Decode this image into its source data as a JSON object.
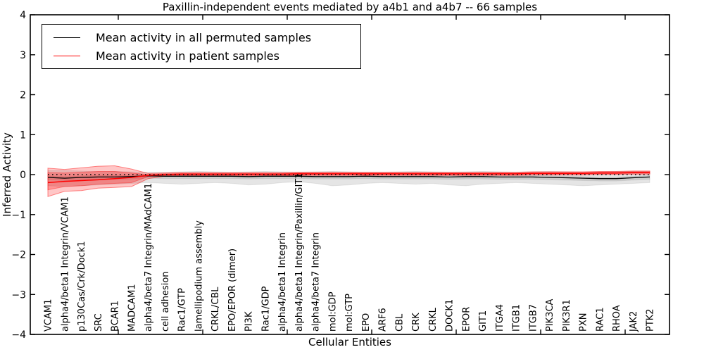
{
  "chart_data": {
    "type": "line",
    "title": "Paxillin-independent events mediated by a4b1 and a4b7 -- 66 samples",
    "xlabel": "Cellular Entities",
    "ylabel": "Inferred Activity",
    "ylim": [
      -4,
      4
    ],
    "yticks": [
      {
        "v": 4,
        "label": "4"
      },
      {
        "v": 3,
        "label": "3"
      },
      {
        "v": 2,
        "label": "2"
      },
      {
        "v": 1,
        "label": "1"
      },
      {
        "v": 0,
        "label": "0"
      },
      {
        "v": -1,
        "label": "−1"
      },
      {
        "v": -2,
        "label": "−2"
      },
      {
        "v": -3,
        "label": "−3"
      },
      {
        "v": -4,
        "label": "−4"
      }
    ],
    "xticks": [
      5,
      10,
      15,
      20,
      25,
      30,
      35
    ],
    "grid": false,
    "legend_position": "upper-left",
    "categories": [
      "VCAM1",
      "alpha4/beta1 Integrin/VCAM1",
      "p130Cas/Crk/Dock1",
      "SRC",
      "BCAR1",
      "MADCAM1",
      "alpha4/beta7 Integrin/MAdCAM1",
      "cell adhesion",
      "Rac1/GTP",
      "lamellipodium assembly",
      "CRKL/CBL",
      "EPO/EPOR (dimer)",
      "PI3K",
      "Rac1/GDP",
      "alpha4/beta1 Integrin",
      "alpha4/beta1 Integrin/Paxillin/GIT1",
      "alpha4/beta7 Integrin",
      "mol:GDP",
      "mol:GTP",
      "EPO",
      "ARF6",
      "CBL",
      "CRK",
      "CRKL",
      "DOCK1",
      "EPOR",
      "GIT1",
      "ITGA4",
      "ITGB1",
      "ITGB7",
      "PIK3CA",
      "PIK3R1",
      "PXN",
      "RAC1",
      "RHOA",
      "JAK2",
      "PTK2"
    ],
    "series": [
      {
        "name": "Mean activity in all permuted samples",
        "color": "#000000",
        "style": "solid",
        "values": [
          -0.07,
          -0.09,
          -0.07,
          -0.06,
          -0.06,
          -0.05,
          -0.03,
          -0.04,
          -0.04,
          -0.04,
          -0.04,
          -0.04,
          -0.05,
          -0.04,
          -0.04,
          -0.04,
          -0.05,
          -0.05,
          -0.05,
          -0.04,
          -0.05,
          -0.05,
          -0.05,
          -0.05,
          -0.06,
          -0.05,
          -0.05,
          -0.06,
          -0.06,
          -0.06,
          -0.07,
          -0.08,
          -0.09,
          -0.1,
          -0.1,
          -0.08,
          -0.06
        ]
      },
      {
        "name": "Mean activity in patient samples",
        "color": "#ff0000",
        "style": "solid",
        "values": [
          -0.2,
          -0.17,
          -0.15,
          -0.13,
          -0.1,
          -0.07,
          -0.02,
          0.0,
          0.01,
          0.01,
          0.01,
          0.01,
          0.01,
          0.01,
          0.01,
          0.02,
          0.02,
          0.02,
          0.02,
          0.02,
          0.02,
          0.02,
          0.02,
          0.02,
          0.02,
          0.02,
          0.02,
          0.02,
          0.02,
          0.03,
          0.03,
          0.03,
          0.03,
          0.04,
          0.04,
          0.05,
          0.05
        ]
      }
    ],
    "reference_line": {
      "name": "zero-baseline",
      "y": 0,
      "color": "#000000",
      "style": "dotted"
    },
    "bands": [
      {
        "name": "permuted-range-outer",
        "color": "#000000",
        "alpha": 0.1,
        "edge_color": "#000000",
        "edge_alpha": 0.08,
        "upper": [
          0.1,
          0.1,
          0.09,
          0.08,
          0.08,
          0.07,
          0.06,
          0.06,
          0.07,
          0.08,
          0.07,
          0.06,
          0.07,
          0.08,
          0.07,
          0.06,
          0.07,
          0.08,
          0.07,
          0.06,
          0.06,
          0.07,
          0.08,
          0.07,
          0.06,
          0.07,
          0.08,
          0.07,
          0.06,
          0.07,
          0.08,
          0.07,
          0.06,
          0.07,
          0.08,
          0.08,
          0.08
        ],
        "lower": [
          -0.28,
          -0.3,
          -0.28,
          -0.26,
          -0.24,
          -0.22,
          -0.2,
          -0.22,
          -0.24,
          -0.22,
          -0.2,
          -0.22,
          -0.26,
          -0.24,
          -0.2,
          -0.18,
          -0.22,
          -0.28,
          -0.26,
          -0.22,
          -0.2,
          -0.22,
          -0.24,
          -0.22,
          -0.26,
          -0.28,
          -0.24,
          -0.22,
          -0.2,
          -0.22,
          -0.24,
          -0.26,
          -0.28,
          -0.26,
          -0.24,
          -0.22,
          -0.2
        ]
      },
      {
        "name": "permuted-range-inner",
        "color": "#000000",
        "alpha": 0.1,
        "edge_color": "#000000",
        "edge_alpha": 0.06,
        "upper": [
          -0.03,
          -0.05,
          -0.03,
          -0.02,
          -0.02,
          -0.01,
          0.01,
          0.0,
          0.0,
          0.0,
          0.0,
          0.0,
          -0.01,
          0.0,
          0.0,
          0.0,
          -0.01,
          -0.01,
          -0.01,
          0.0,
          -0.01,
          -0.01,
          -0.01,
          -0.01,
          -0.02,
          -0.01,
          -0.01,
          -0.02,
          -0.02,
          -0.02,
          -0.03,
          -0.04,
          -0.05,
          -0.06,
          -0.06,
          -0.04,
          -0.02
        ],
        "lower": [
          -0.13,
          -0.15,
          -0.13,
          -0.12,
          -0.12,
          -0.11,
          -0.09,
          -0.1,
          -0.1,
          -0.1,
          -0.1,
          -0.1,
          -0.11,
          -0.1,
          -0.1,
          -0.1,
          -0.11,
          -0.11,
          -0.11,
          -0.1,
          -0.11,
          -0.11,
          -0.11,
          -0.11,
          -0.12,
          -0.11,
          -0.11,
          -0.12,
          -0.12,
          -0.12,
          -0.13,
          -0.14,
          -0.15,
          -0.16,
          -0.16,
          -0.14,
          -0.12
        ]
      },
      {
        "name": "patient-range-outer",
        "color": "#ff0000",
        "alpha": 0.22,
        "edge_color": "#ff0000",
        "edge_alpha": 0.45,
        "upper": [
          0.16,
          0.13,
          0.17,
          0.21,
          0.22,
          0.14,
          0.03,
          0.04,
          0.05,
          0.05,
          0.05,
          0.05,
          0.05,
          0.05,
          0.05,
          0.06,
          0.06,
          0.06,
          0.06,
          0.06,
          0.06,
          0.06,
          0.06,
          0.06,
          0.06,
          0.06,
          0.06,
          0.06,
          0.06,
          0.07,
          0.07,
          0.07,
          0.07,
          0.08,
          0.08,
          0.09,
          0.09
        ],
        "lower": [
          -0.55,
          -0.42,
          -0.4,
          -0.34,
          -0.32,
          -0.3,
          -0.1,
          -0.04,
          -0.03,
          -0.03,
          -0.03,
          -0.03,
          -0.03,
          -0.03,
          -0.03,
          -0.02,
          -0.02,
          -0.02,
          -0.02,
          -0.02,
          -0.02,
          -0.02,
          -0.02,
          -0.02,
          -0.02,
          -0.02,
          -0.02,
          -0.02,
          -0.02,
          -0.01,
          -0.01,
          -0.01,
          -0.01,
          0.0,
          0.0,
          0.01,
          0.01
        ]
      },
      {
        "name": "patient-range-inner",
        "color": "#ff0000",
        "alpha": 0.25,
        "edge_color": "#ff0000",
        "edge_alpha": 0.35,
        "upper": [
          0.05,
          0.04,
          0.06,
          0.08,
          0.08,
          0.04,
          0.0,
          0.02,
          0.03,
          0.03,
          0.03,
          0.03,
          0.03,
          0.03,
          0.03,
          0.04,
          0.04,
          0.04,
          0.04,
          0.04,
          0.04,
          0.04,
          0.04,
          0.04,
          0.04,
          0.04,
          0.04,
          0.04,
          0.04,
          0.05,
          0.05,
          0.05,
          0.05,
          0.06,
          0.06,
          0.07,
          0.07
        ],
        "lower": [
          -0.38,
          -0.3,
          -0.28,
          -0.24,
          -0.22,
          -0.2,
          -0.05,
          -0.02,
          -0.01,
          -0.01,
          -0.01,
          -0.01,
          -0.01,
          -0.01,
          -0.01,
          0.0,
          0.0,
          0.0,
          0.0,
          0.0,
          0.0,
          0.0,
          0.0,
          0.0,
          0.0,
          0.0,
          0.0,
          0.0,
          0.0,
          0.01,
          0.01,
          0.01,
          0.01,
          0.02,
          0.02,
          0.03,
          0.03
        ]
      }
    ],
    "colors": {
      "axis": "#000000",
      "background": "#ffffff",
      "permuted": "#000000",
      "patient": "#ff0000"
    }
  }
}
